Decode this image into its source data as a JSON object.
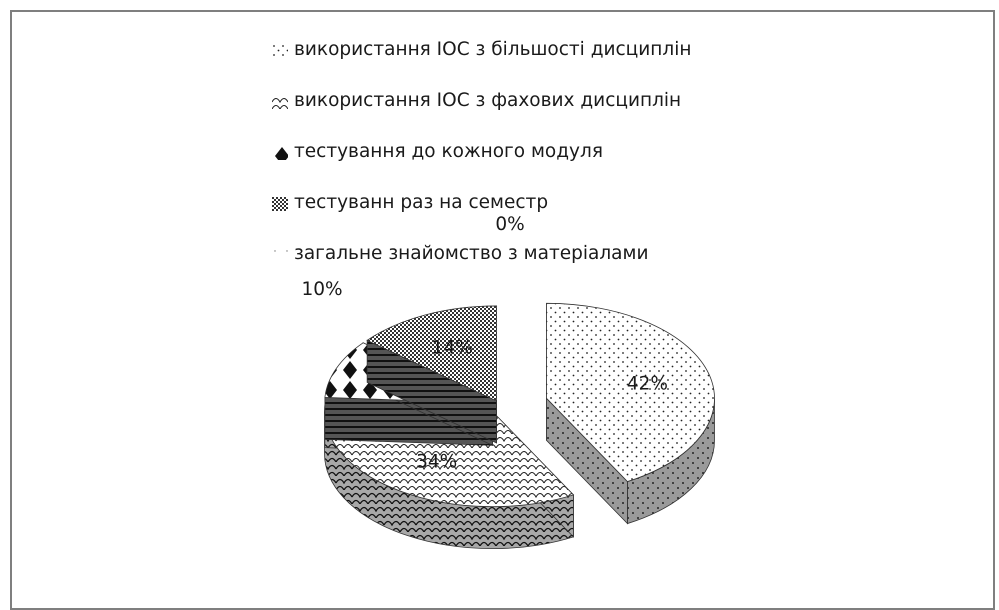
{
  "chart_data": {
    "type": "pie",
    "title": "",
    "categories": [
      "використання ІОС з більшості дисциплін",
      "використання ІОС з фахових дисциплін",
      "тестування до кожного модуля",
      "тестуванн раз на семестр",
      "загальне знайомство з матеріалами"
    ],
    "values": [
      42,
      34,
      10,
      14,
      0
    ],
    "data_labels": [
      "42%",
      "34%",
      "10%",
      "14%",
      "0%"
    ],
    "legend_position": "top",
    "exploded": true,
    "three_d": true,
    "colors": {
      "pattern_ink": "#1a1a1a",
      "side_fill": "#9a9a9a",
      "border": "#7f7f7f"
    }
  }
}
